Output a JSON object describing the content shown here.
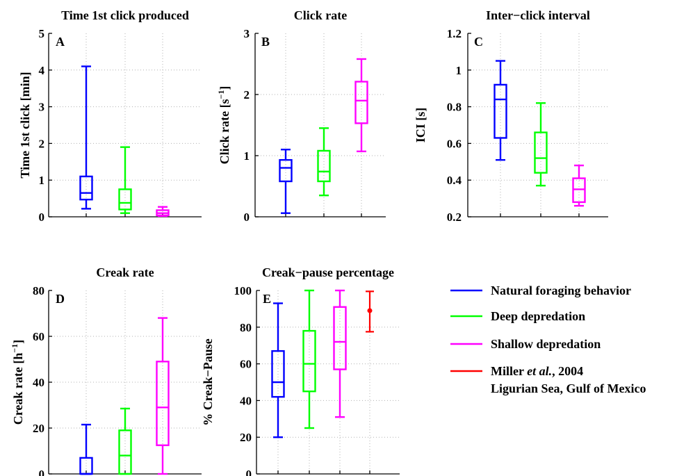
{
  "legend": {
    "entries": [
      {
        "label": "Natural foraging behavior",
        "color": "#0000ff"
      },
      {
        "label": "Deep depredation",
        "color": "#00ff00"
      },
      {
        "label": "Shallow depredation",
        "color": "#ff00ff"
      },
      {
        "label_parts": [
          "Miller ",
          "et al.",
          ", 2004"
        ],
        "label2": "Ligurian Sea, Gulf of Mexico",
        "color": "#ff0000"
      }
    ]
  },
  "chart_data": [
    {
      "panel": "A",
      "type": "box",
      "title": "Time 1st click produced",
      "ylabel": "Time 1st click [min]",
      "ylim": [
        0,
        5
      ],
      "yticks": [
        "0",
        "1",
        "2",
        "3",
        "4",
        "5"
      ],
      "grid": true,
      "series": [
        {
          "name": "Natural foraging behavior",
          "color": "#0000ff",
          "min": 0.22,
          "q1": 0.47,
          "median": 0.65,
          "q3": 1.1,
          "max": 4.1
        },
        {
          "name": "Deep depredation",
          "color": "#00ff00",
          "min": 0.1,
          "q1": 0.2,
          "median": 0.38,
          "q3": 0.75,
          "max": 1.9
        },
        {
          "name": "Shallow depredation",
          "color": "#ff00ff",
          "min": 0.02,
          "q1": 0.04,
          "median": 0.1,
          "q3": 0.18,
          "max": 0.27
        }
      ]
    },
    {
      "panel": "B",
      "type": "box",
      "title": "Click rate",
      "ylabel": "Click rate [s",
      "ylabel_sup": "−1",
      "ylabel_end": "]",
      "ylim": [
        0,
        3
      ],
      "yticks": [
        "0",
        "1",
        "2",
        "3"
      ],
      "grid": true,
      "series": [
        {
          "name": "Natural foraging behavior",
          "color": "#0000ff",
          "min": 0.06,
          "q1": 0.58,
          "median": 0.8,
          "q3": 0.93,
          "max": 1.1
        },
        {
          "name": "Deep depredation",
          "color": "#00ff00",
          "min": 0.35,
          "q1": 0.58,
          "median": 0.74,
          "q3": 1.08,
          "max": 1.45
        },
        {
          "name": "Shallow depredation",
          "color": "#ff00ff",
          "min": 1.07,
          "q1": 1.53,
          "median": 1.9,
          "q3": 2.21,
          "max": 2.58
        }
      ]
    },
    {
      "panel": "C",
      "type": "box",
      "title": "Inter−click interval",
      "ylabel": "ICI [s]",
      "ylim": [
        0.2,
        1.2
      ],
      "yticks": [
        "0.2",
        "0.4",
        "0.6",
        "0.8",
        "1",
        "1.2"
      ],
      "grid": true,
      "series": [
        {
          "name": "Natural foraging behavior",
          "color": "#0000ff",
          "min": 0.51,
          "q1": 0.63,
          "median": 0.84,
          "q3": 0.92,
          "max": 1.05
        },
        {
          "name": "Deep depredation",
          "color": "#00ff00",
          "min": 0.37,
          "q1": 0.44,
          "median": 0.52,
          "q3": 0.66,
          "max": 0.82
        },
        {
          "name": "Shallow depredation",
          "color": "#ff00ff",
          "min": 0.26,
          "q1": 0.28,
          "median": 0.35,
          "q3": 0.41,
          "max": 0.48
        }
      ]
    },
    {
      "panel": "D",
      "type": "box",
      "title": "Creak rate",
      "ylabel": "Creak rate [h",
      "ylabel_sup": "−1",
      "ylabel_end": "]",
      "ylim": [
        0,
        80
      ],
      "yticks": [
        "0",
        "20",
        "40",
        "60",
        "80"
      ],
      "grid": true,
      "series": [
        {
          "name": "Natural foraging behavior",
          "color": "#0000ff",
          "min": 0,
          "q1": 0,
          "median": 0,
          "q3": 7,
          "max": 21.5
        },
        {
          "name": "Deep depredation",
          "color": "#00ff00",
          "min": 0,
          "q1": 0,
          "median": 8,
          "q3": 19,
          "max": 28.5
        },
        {
          "name": "Shallow depredation",
          "color": "#ff00ff",
          "min": 0,
          "q1": 12.5,
          "median": 29,
          "q3": 49,
          "max": 68
        }
      ]
    },
    {
      "panel": "E",
      "type": "box",
      "title": "Creak−pause percentage",
      "ylabel": "% Creak−Pause",
      "ylim": [
        0,
        100
      ],
      "yticks": [
        "0",
        "20",
        "40",
        "60",
        "80",
        "100"
      ],
      "grid": true,
      "series": [
        {
          "name": "Natural foraging behavior",
          "color": "#0000ff",
          "min": 20,
          "q1": 42,
          "median": 50,
          "q3": 67,
          "max": 93
        },
        {
          "name": "Deep depredation",
          "color": "#00ff00",
          "min": 25,
          "q1": 45,
          "median": 60,
          "q3": 78,
          "max": 100
        },
        {
          "name": "Shallow depredation",
          "color": "#ff00ff",
          "min": 31,
          "q1": 57,
          "median": 72,
          "q3": 91,
          "max": 100
        },
        {
          "name": "Miller et al., 2004",
          "color": "#ff0000",
          "type": "errorbar",
          "mean": 89,
          "low": 77.5,
          "high": 99.5
        }
      ]
    }
  ]
}
